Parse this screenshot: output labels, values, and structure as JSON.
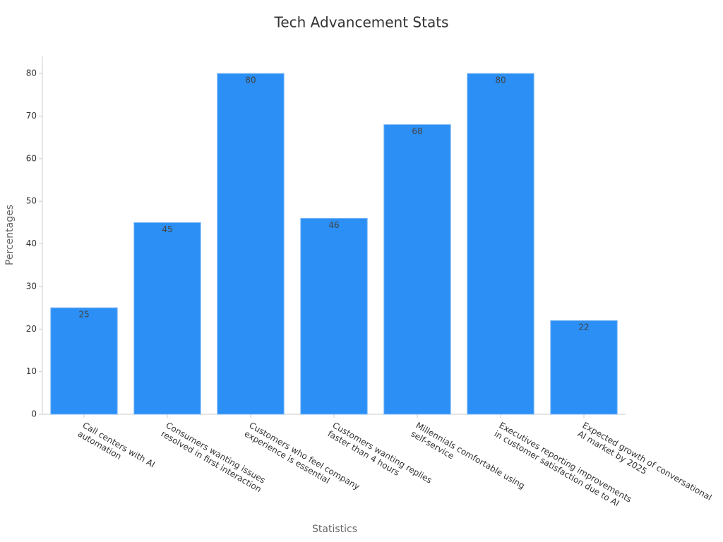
{
  "chart_data": {
    "type": "bar",
    "title": "Tech Advancement Stats",
    "x_label": "Statistics",
    "y_label": "Percentages",
    "categories": [
      "Call centers with AI\nautomation",
      "Consumers wanting issues\nresolved in first interaction",
      "Customers who feel company\nexperience is essential",
      "Customers wanting replies\nfaster than 4 hours",
      "Millennials comfortable using\nself-service",
      "Executives reporting improvements\nin customer satisfaction due to AI",
      "Expected growth of conversational\nAI market by 2025"
    ],
    "values": [
      25,
      45,
      80,
      46,
      68,
      80,
      22
    ],
    "color": "#2b8ff5",
    "ylim": [
      0,
      84
    ],
    "yticks": [
      0,
      10,
      20,
      30,
      40,
      50,
      60,
      70,
      80
    ],
    "grid": false
  }
}
